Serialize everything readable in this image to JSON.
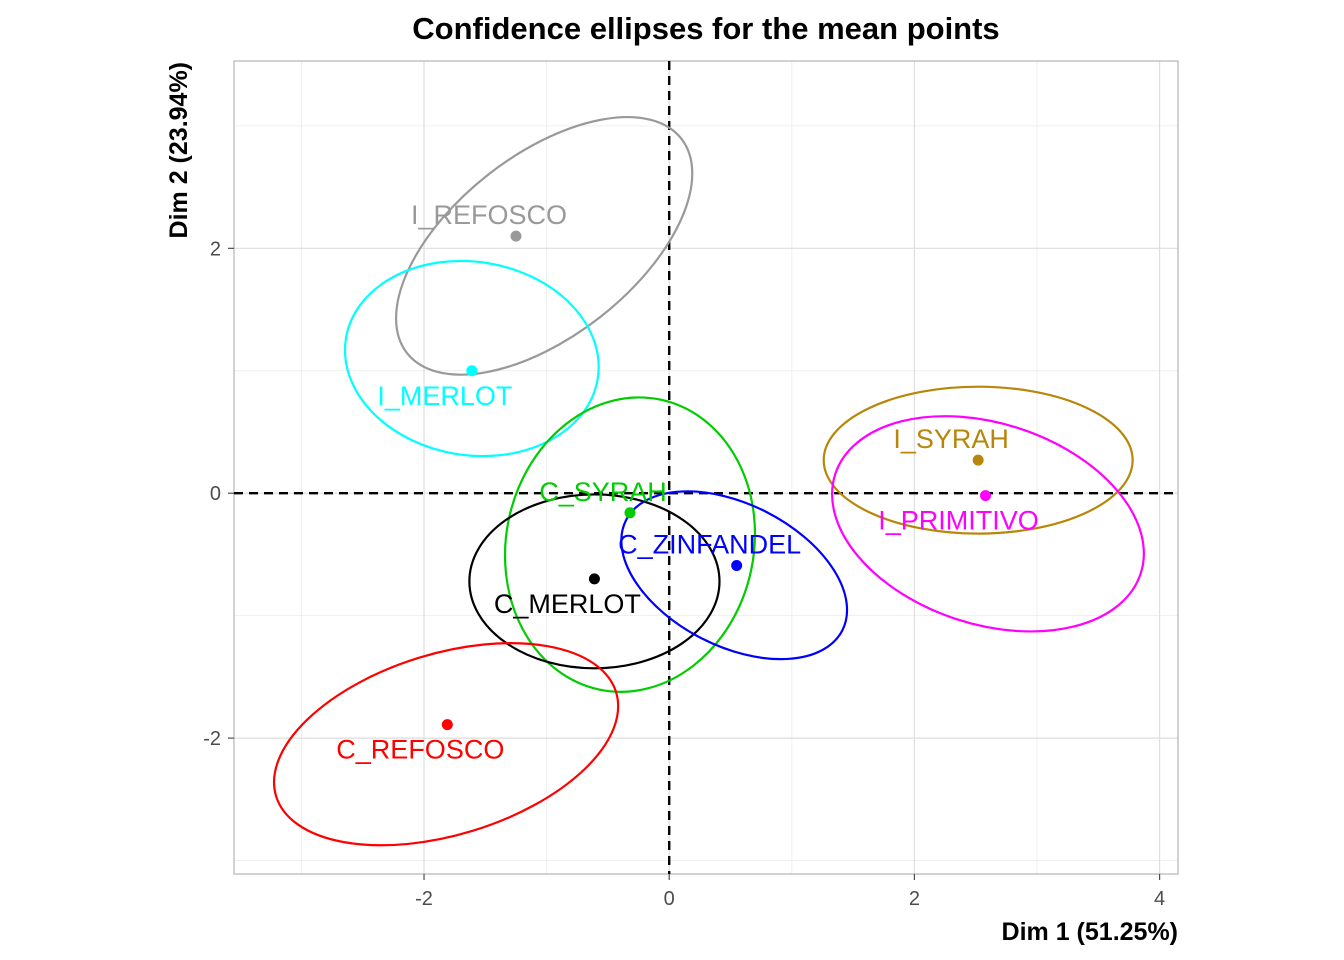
{
  "chart_data": {
    "type": "scatter",
    "title": "Confidence ellipses for the mean points",
    "xlabel": "Dim 1 (51.25%)",
    "ylabel": "Dim 2 (23.94%)",
    "xlim": [
      -3.55,
      4.15
    ],
    "ylim": [
      -3.11,
      3.53
    ],
    "x_ticks": [
      -2,
      0,
      2,
      4
    ],
    "y_ticks": [
      -2,
      0,
      2
    ],
    "grid": true,
    "reference_lines": {
      "x": 0,
      "y": 0,
      "style": "dashed"
    },
    "series": [
      {
        "name": "I_REFOSCO",
        "color": "#999999",
        "x": -1.25,
        "y": 2.1,
        "ellipse": {
          "cx": -1.02,
          "cy": 2.02,
          "rx": 1.42,
          "ry": 0.74,
          "angle_deg": 38
        }
      },
      {
        "name": "I_MERLOT",
        "color": "#00FFFF",
        "x": -1.61,
        "y": 1.0,
        "ellipse": {
          "cx": -1.61,
          "cy": 1.1,
          "rx": 1.04,
          "ry": 0.79,
          "angle_deg": -9
        }
      },
      {
        "name": "C_SYRAH",
        "color": "#00CC00",
        "x": -0.32,
        "y": -0.16,
        "ellipse": {
          "cx": -0.32,
          "cy": -0.42,
          "rx": 1.01,
          "ry": 1.21,
          "angle_deg": -12
        }
      },
      {
        "name": "C_MERLOT",
        "color": "#000000",
        "x": -0.61,
        "y": -0.7,
        "ellipse": {
          "cx": -0.61,
          "cy": -0.72,
          "rx": 1.02,
          "ry": 0.71,
          "angle_deg": 0
        }
      },
      {
        "name": "C_ZINFANDEL",
        "color": "#0000FF",
        "x": 0.55,
        "y": -0.59,
        "ellipse": {
          "cx": 0.53,
          "cy": -0.67,
          "rx": 0.99,
          "ry": 0.58,
          "angle_deg": -27
        }
      },
      {
        "name": "I_SYRAH",
        "color": "#B8860B",
        "x": 2.52,
        "y": 0.27,
        "ellipse": {
          "cx": 2.52,
          "cy": 0.27,
          "rx": 1.26,
          "ry": 0.6,
          "angle_deg": 0
        }
      },
      {
        "name": "I_PRIMITIVO",
        "color": "#FF00FF",
        "x": 2.58,
        "y": -0.02,
        "ellipse": {
          "cx": 2.6,
          "cy": -0.25,
          "rx": 1.31,
          "ry": 0.82,
          "angle_deg": -18
        }
      },
      {
        "name": "C_REFOSCO",
        "color": "#FF0000",
        "x": -1.81,
        "y": -1.89,
        "ellipse": {
          "cx": -1.82,
          "cy": -2.05,
          "rx": 1.45,
          "ry": 0.74,
          "angle_deg": 17
        }
      }
    ]
  }
}
